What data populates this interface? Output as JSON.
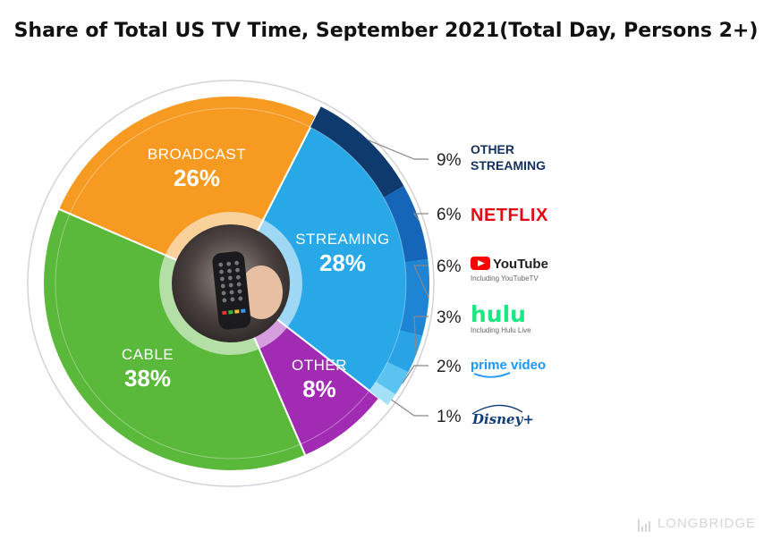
{
  "title": "Share of Total US TV Time, September 2021(Total Day, Persons 2+)",
  "watermark": "LONGBRIDGE",
  "chart_data": {
    "type": "pie",
    "title": "Share of Total US TV Time, September 2021(Total Day, Persons 2+)",
    "slices": [
      {
        "label": "STREAMING",
        "value": 28,
        "display": "28%",
        "color": "#29a8e8"
      },
      {
        "label": "OTHER",
        "value": 8,
        "display": "8%",
        "color": "#a12bb2"
      },
      {
        "label": "CABLE",
        "value": 38,
        "display": "38%",
        "color": "#5ab83a"
      },
      {
        "label": "BROADCAST",
        "value": 26,
        "display": "26%",
        "color": "#f79a22"
      }
    ],
    "streaming_breakdown": [
      {
        "label": "OTHER STREAMING",
        "label_lines": [
          "OTHER",
          "STREAMING"
        ],
        "value": 9,
        "display": "9%",
        "color": "#0f3a6e",
        "brand": "other-streaming"
      },
      {
        "label": "NETFLIX",
        "value": 6,
        "display": "6%",
        "color": "#1565b8",
        "brand": "netflix"
      },
      {
        "label": "YouTube",
        "sublabel": "Including YouTubeTV",
        "value": 6,
        "display": "6%",
        "color": "#1d85d3",
        "brand": "youtube"
      },
      {
        "label": "hulu",
        "sublabel": "Including Hulu Live",
        "value": 3,
        "display": "3%",
        "color": "#2aa3e6",
        "brand": "hulu"
      },
      {
        "label": "prime video",
        "value": 2,
        "display": "2%",
        "color": "#5bc3f0",
        "brand": "prime-video"
      },
      {
        "label": "Disney+",
        "value": 1,
        "display": "1%",
        "color": "#a4e0f8",
        "brand": "disney-plus"
      }
    ]
  }
}
